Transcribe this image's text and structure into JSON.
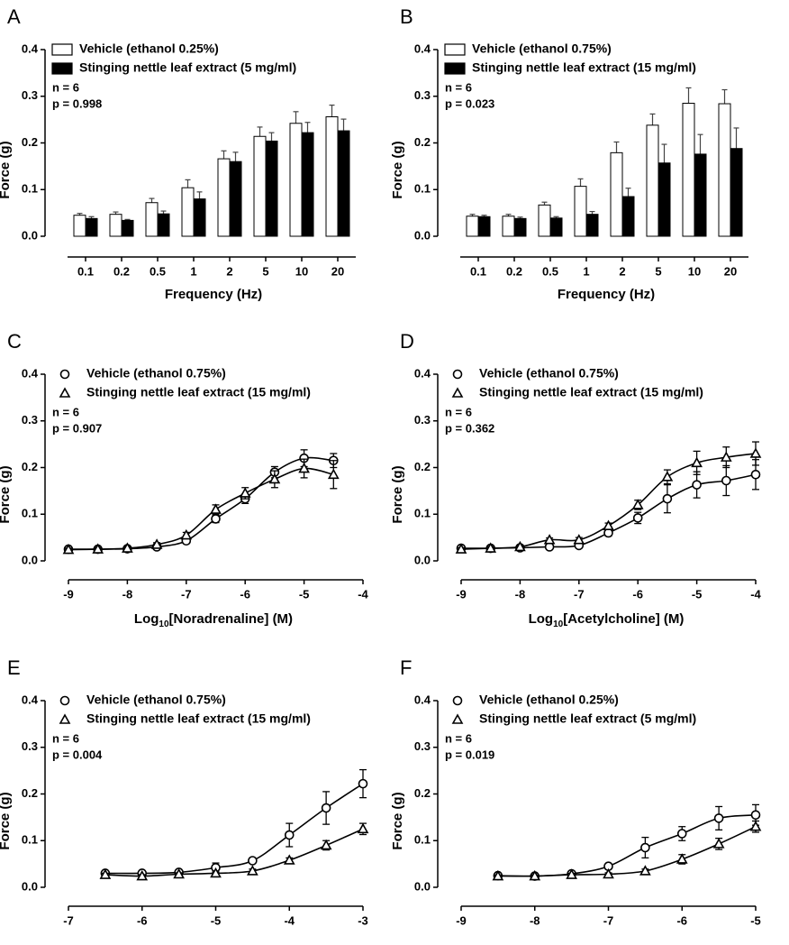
{
  "chart_data": [
    {
      "type": "bar",
      "panel_label": "A",
      "y_label": "Force (g)",
      "x_label": "Frequency (Hz)",
      "categories": [
        "0.1",
        "0.2",
        "0.5",
        "1",
        "2",
        "5",
        "10",
        "20"
      ],
      "series": [
        {
          "name": "Vehicle (ethanol 0.25%)",
          "color": "#ffffff",
          "values": [
            0.045,
            0.047,
            0.072,
            0.104,
            0.166,
            0.214,
            0.242,
            0.256
          ],
          "errors": [
            0.004,
            0.005,
            0.009,
            0.017,
            0.017,
            0.02,
            0.025,
            0.025
          ]
        },
        {
          "name": "Stinging nettle leaf extract (5 mg/ml)",
          "color": "#000000",
          "values": [
            0.038,
            0.034,
            0.048,
            0.08,
            0.16,
            0.204,
            0.222,
            0.226
          ],
          "errors": [
            0.004,
            0.002,
            0.006,
            0.015,
            0.02,
            0.018,
            0.022,
            0.025
          ]
        }
      ],
      "annotations": [
        "n = 6",
        "p = 0.998"
      ],
      "ylim": [
        0,
        0.4
      ],
      "yticks": [
        {
          "value": 0,
          "label": "0.0"
        },
        0.1,
        0.2,
        0.3,
        0.4
      ]
    },
    {
      "type": "bar",
      "panel_label": "B",
      "y_label": "Force (g)",
      "x_label": "Frequency (Hz)",
      "categories": [
        "0.1",
        "0.2",
        "0.5",
        "1",
        "2",
        "5",
        "10",
        "20"
      ],
      "series": [
        {
          "name": "Vehicle (ethanol 0.75%)",
          "color": "#ffffff",
          "values": [
            0.043,
            0.043,
            0.067,
            0.107,
            0.179,
            0.238,
            0.285,
            0.284
          ],
          "errors": [
            0.004,
            0.004,
            0.006,
            0.016,
            0.023,
            0.024,
            0.033,
            0.03
          ]
        },
        {
          "name": "Stinging nettle leaf extract (15 mg/ml)",
          "color": "#000000",
          "values": [
            0.042,
            0.038,
            0.039,
            0.047,
            0.085,
            0.157,
            0.176,
            0.188
          ],
          "errors": [
            0.003,
            0.003,
            0.003,
            0.006,
            0.018,
            0.04,
            0.042,
            0.044
          ]
        }
      ],
      "annotations": [
        "n = 6",
        "p = 0.023"
      ],
      "ylim": [
        0,
        0.4
      ],
      "yticks": [
        {
          "value": 0,
          "label": "0.0"
        },
        0.1,
        0.2,
        0.3,
        0.4
      ]
    },
    {
      "type": "line",
      "panel_label": "C",
      "y_label": "Force (g)",
      "x_label": [
        "Log",
        "10",
        "[Noradrenaline] (M)"
      ],
      "x": [
        -9,
        -8.5,
        -8,
        -7.5,
        -7,
        -6.5,
        -6,
        -5.5,
        -5,
        -4.5
      ],
      "series": [
        {
          "name": "Vehicle (ethanol 0.75%)",
          "marker": "circle",
          "color": "#000000",
          "values": [
            0.025,
            0.025,
            0.026,
            0.03,
            0.043,
            0.09,
            0.133,
            0.19,
            0.22,
            0.215
          ],
          "errors": [
            0.003,
            0.003,
            0.003,
            0.003,
            0.005,
            0.008,
            0.01,
            0.012,
            0.018,
            0.015
          ]
        },
        {
          "name": "Stinging nettle leaf extract (15 mg/ml)",
          "marker": "triangle",
          "color": "#000000",
          "values": [
            0.024,
            0.025,
            0.027,
            0.035,
            0.055,
            0.11,
            0.145,
            0.175,
            0.198,
            0.185
          ],
          "errors": [
            0.003,
            0.003,
            0.003,
            0.004,
            0.006,
            0.01,
            0.012,
            0.018,
            0.02,
            0.03
          ]
        }
      ],
      "annotations": [
        "n = 6",
        "p = 0.907"
      ],
      "xlim": [
        -9,
        -4
      ],
      "xticks": [
        -9,
        -8,
        -7,
        -6,
        -5,
        -4
      ],
      "ylim": [
        0,
        0.4
      ],
      "yticks": [
        {
          "value": 0,
          "label": "0.0"
        },
        0.1,
        0.2,
        0.3,
        0.4
      ]
    },
    {
      "type": "line",
      "panel_label": "D",
      "y_label": "Force (g)",
      "x_label": [
        "Log",
        "10",
        "[Acetylcholine] (M)"
      ],
      "x": [
        -9,
        -8.5,
        -8,
        -7.5,
        -7,
        -6.5,
        -6,
        -5.5,
        -5,
        -4.5,
        -4
      ],
      "series": [
        {
          "name": "Vehicle (ethanol 0.75%)",
          "marker": "circle",
          "color": "#000000",
          "values": [
            0.027,
            0.027,
            0.028,
            0.03,
            0.033,
            0.06,
            0.092,
            0.133,
            0.163,
            0.172,
            0.185
          ],
          "errors": [
            0.003,
            0.003,
            0.003,
            0.003,
            0.004,
            0.007,
            0.012,
            0.03,
            0.028,
            0.032,
            0.032
          ]
        },
        {
          "name": "Stinging nettle leaf extract (15 mg/ml)",
          "marker": "triangle",
          "color": "#000000",
          "values": [
            0.025,
            0.027,
            0.03,
            0.045,
            0.045,
            0.075,
            0.12,
            0.18,
            0.21,
            0.222,
            0.23
          ],
          "errors": [
            0.003,
            0.003,
            0.003,
            0.004,
            0.005,
            0.006,
            0.01,
            0.015,
            0.025,
            0.022,
            0.025
          ]
        }
      ],
      "annotations": [
        "n = 6",
        "p = 0.362"
      ],
      "xlim": [
        -9,
        -4
      ],
      "xticks": [
        -9,
        -8,
        -7,
        -6,
        -5,
        -4
      ],
      "ylim": [
        0,
        0.4
      ],
      "yticks": [
        {
          "value": 0,
          "label": "0.0"
        },
        0.1,
        0.2,
        0.3,
        0.4
      ]
    },
    {
      "type": "line",
      "panel_label": "E",
      "y_label": "Force (g)",
      "x": [
        -6.5,
        -6,
        -5.5,
        -5,
        -4.5,
        -4,
        -3.5,
        -3
      ],
      "series": [
        {
          "name": "Vehicle (ethanol 0.75%)",
          "marker": "circle",
          "color": "#000000",
          "values": [
            0.03,
            0.03,
            0.032,
            0.042,
            0.057,
            0.112,
            0.17,
            0.222
          ],
          "errors": [
            0.004,
            0.003,
            0.004,
            0.01,
            0.005,
            0.025,
            0.035,
            0.03
          ]
        },
        {
          "name": "Stinging nettle leaf extract (15 mg/ml)",
          "marker": "triangle",
          "color": "#000000",
          "values": [
            0.027,
            0.024,
            0.028,
            0.03,
            0.035,
            0.058,
            0.09,
            0.125
          ],
          "errors": [
            0.003,
            0.003,
            0.003,
            0.003,
            0.004,
            0.005,
            0.01,
            0.012
          ]
        }
      ],
      "annotations": [
        "n = 6",
        "p = 0.004"
      ],
      "xlim": [
        -7,
        -3
      ],
      "xticks": [
        -7,
        -6,
        -5,
        -4,
        -3
      ],
      "ylim": [
        0,
        0.4
      ],
      "yticks": [
        {
          "value": 0,
          "label": "0.0"
        },
        0.1,
        0.2,
        0.3,
        0.4
      ]
    },
    {
      "type": "line",
      "panel_label": "F",
      "y_label": "Force (g)",
      "x": [
        -8.5,
        -8,
        -7.5,
        -7,
        -6.5,
        -6,
        -5.5,
        -5
      ],
      "series": [
        {
          "name": "Vehicle (ethanol 0.25%)",
          "marker": "circle",
          "color": "#000000",
          "values": [
            0.025,
            0.024,
            0.029,
            0.045,
            0.085,
            0.115,
            0.148,
            0.155
          ],
          "errors": [
            0.003,
            0.002,
            0.003,
            0.005,
            0.022,
            0.015,
            0.025,
            0.022
          ]
        },
        {
          "name": "Stinging nettle leaf extract (5 mg/ml)",
          "marker": "triangle",
          "color": "#000000",
          "values": [
            0.024,
            0.024,
            0.027,
            0.028,
            0.035,
            0.06,
            0.093,
            0.13
          ],
          "errors": [
            0.002,
            0.002,
            0.003,
            0.003,
            0.004,
            0.01,
            0.012,
            0.012
          ]
        }
      ],
      "annotations": [
        "n = 6",
        "p = 0.019"
      ],
      "xlim": [
        -9,
        -5
      ],
      "xticks": [
        -9,
        -8,
        -7,
        -6,
        -5
      ],
      "ylim": [
        0,
        0.4
      ],
      "yticks": [
        {
          "value": 0,
          "label": "0.0"
        },
        0.1,
        0.2,
        0.3,
        0.4
      ]
    }
  ]
}
